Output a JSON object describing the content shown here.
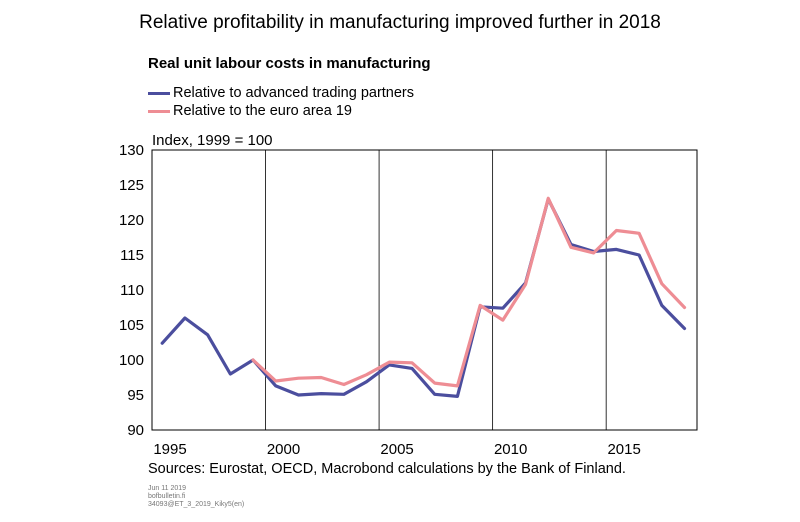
{
  "title": "Relative profitability in manufacturing improved further in 2018",
  "subtitle": "Real unit labour costs in manufacturing",
  "unit_label": "Index, 1999 = 100",
  "source": "Sources: Eurostat, OECD, Macrobond calculations by the Bank of Finland.",
  "meta": [
    "Jun 11 2019",
    "bofbulletin.fi",
    "34093@ET_3_2019_Kiky5(en)"
  ],
  "chart_data": {
    "type": "line",
    "title": "Real unit labour costs in manufacturing",
    "ylabel": "Index, 1999 = 100",
    "xlim": [
      1995,
      2019
    ],
    "ylim": [
      90,
      130
    ],
    "x_ticks": [
      1995,
      2000,
      2005,
      2010,
      2015
    ],
    "y_ticks": [
      90,
      95,
      100,
      105,
      110,
      115,
      120,
      125,
      130
    ],
    "grid": "vertical",
    "legend_position": "top-left",
    "series": [
      {
        "name": "Relative to advanced trading partners",
        "color": "#4b4e9e",
        "x": [
          1995,
          1996,
          1997,
          1998,
          1999,
          2000,
          2001,
          2002,
          2003,
          2004,
          2005,
          2006,
          2007,
          2008,
          2009,
          2010,
          2011,
          2012,
          2013,
          2014,
          2015,
          2016,
          2017,
          2018
        ],
        "y": [
          102.4,
          106.0,
          103.6,
          98.0,
          100.0,
          96.3,
          95.0,
          95.2,
          95.1,
          96.9,
          99.3,
          98.8,
          95.1,
          94.8,
          107.6,
          107.4,
          111.0,
          123.0,
          116.5,
          115.5,
          115.8,
          115.0,
          107.8,
          104.5
        ]
      },
      {
        "name": "Relative to the euro area 19",
        "color": "#ee8d94",
        "x": [
          1999,
          2000,
          2001,
          2002,
          2003,
          2004,
          2005,
          2006,
          2007,
          2008,
          2009,
          2010,
          2011,
          2012,
          2013,
          2014,
          2015,
          2016,
          2017,
          2018
        ],
        "y": [
          100.0,
          97.0,
          97.4,
          97.5,
          96.5,
          97.9,
          99.7,
          99.6,
          96.7,
          96.3,
          107.8,
          105.7,
          110.8,
          123.1,
          116.1,
          115.3,
          118.5,
          118.1,
          110.9,
          107.5
        ]
      }
    ]
  }
}
